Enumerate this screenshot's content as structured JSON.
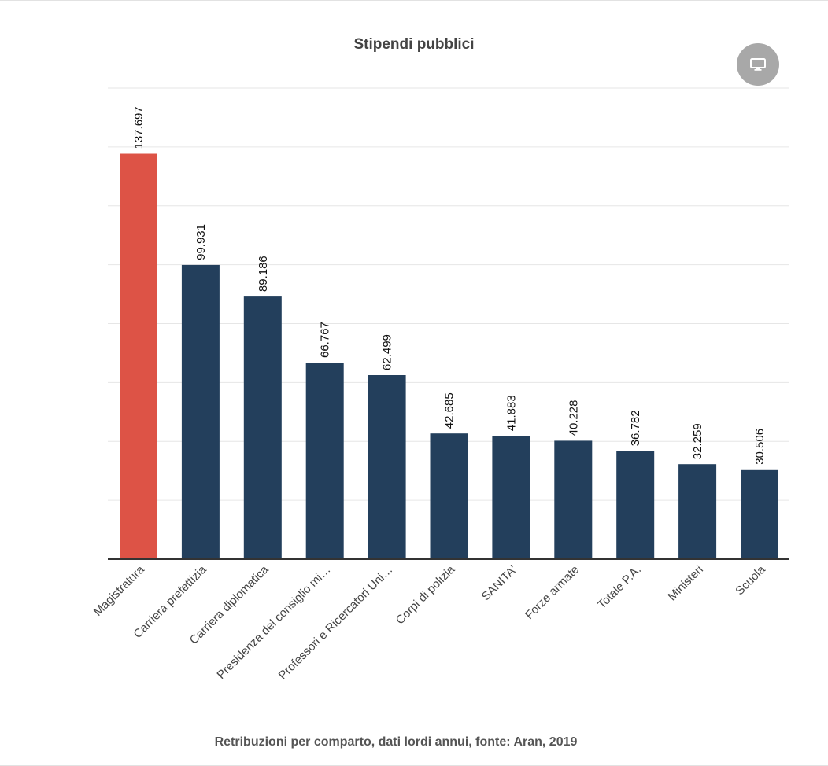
{
  "chart_data": {
    "type": "bar",
    "title": "Stipendi pubblici",
    "caption": "Retribuzioni per comparto, dati lordi annui, fonte: Aran, 2019",
    "categories": [
      "Magistratura",
      "Carriera prefettizia",
      "Carriera diplomatica",
      "Presidenza del consiglio mi…",
      "Professori e Ricercatori Uni…",
      "Corpi di polizia",
      "SANITA'",
      "Forze armate",
      "Totale P.A.",
      "Ministeri",
      "Scuola"
    ],
    "values": [
      137697,
      99931,
      89186,
      66767,
      62499,
      42685,
      41883,
      40228,
      36782,
      32259,
      30506
    ],
    "value_labels": [
      "137.697",
      "99.931",
      "89.186",
      "66.767",
      "62.499",
      "42.685",
      "41.883",
      "40.228",
      "36.782",
      "32.259",
      "30.506"
    ],
    "ylim": [
      0,
      160000
    ],
    "grid": true,
    "legend": "none",
    "colors": {
      "highlight": "#dd5346",
      "bar": "#233f5c",
      "grid": "#e6e6e6",
      "axis": "#333333"
    },
    "highlight_index": 0
  },
  "ui": {
    "screen_button_icon": "monitor-icon"
  }
}
